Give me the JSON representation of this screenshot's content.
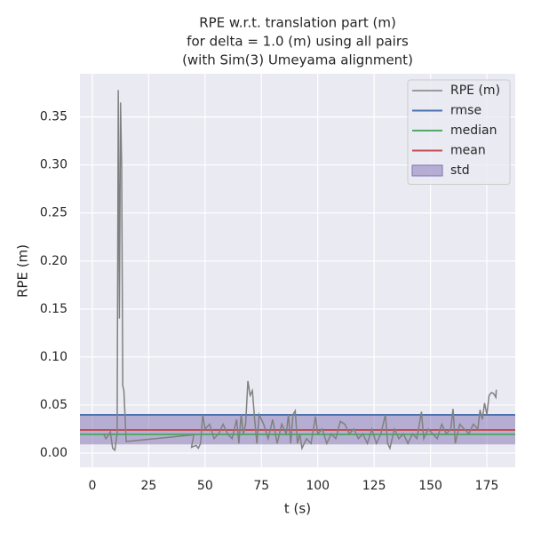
{
  "chart_data": {
    "type": "line",
    "title": [
      "RPE w.r.t. translation part (m)",
      "for delta = 1.0 (m) using all pairs",
      "(with Sim(3) Umeyama alignment)"
    ],
    "xlabel": "t (s)",
    "ylabel": "RPE (m)",
    "x": [
      5,
      6,
      7,
      8,
      9,
      10,
      10.5,
      11,
      11.5,
      12,
      12.5,
      13,
      13.5,
      14,
      15,
      45,
      44,
      46,
      47,
      48,
      49,
      50,
      52,
      54,
      56,
      58,
      60,
      62,
      64,
      65,
      66,
      67,
      68,
      69,
      70,
      71,
      72,
      73,
      74,
      76,
      78,
      80,
      82,
      84,
      86,
      87,
      88,
      89,
      90,
      91,
      92,
      93,
      95,
      97,
      99,
      100,
      102,
      104,
      106,
      108,
      110,
      112,
      114,
      116,
      118,
      120,
      122,
      124,
      126,
      128,
      130,
      131,
      132,
      134,
      136,
      138,
      140,
      142,
      144,
      146,
      147,
      149,
      151,
      153,
      155,
      157,
      159,
      160,
      161,
      163,
      165,
      167,
      169,
      171,
      172,
      173,
      174,
      175,
      176,
      177,
      178,
      179,
      179.2
    ],
    "series": [
      {
        "name": "RPE (m)",
        "color": "#808080",
        "values": [
          0.02,
          0.015,
          0.018,
          0.022,
          0.005,
          0.003,
          0.012,
          0.02,
          0.378,
          0.14,
          0.365,
          0.3,
          0.07,
          0.065,
          0.012,
          0.019,
          0.006,
          0.008,
          0.005,
          0.01,
          0.04,
          0.025,
          0.03,
          0.015,
          0.02,
          0.03,
          0.02,
          0.015,
          0.035,
          0.01,
          0.04,
          0.02,
          0.03,
          0.075,
          0.06,
          0.065,
          0.035,
          0.01,
          0.04,
          0.03,
          0.015,
          0.035,
          0.01,
          0.03,
          0.02,
          0.04,
          0.01,
          0.04,
          0.044,
          0.01,
          0.02,
          0.005,
          0.015,
          0.01,
          0.038,
          0.02,
          0.025,
          0.01,
          0.02,
          0.015,
          0.033,
          0.03,
          0.02,
          0.025,
          0.015,
          0.02,
          0.01,
          0.025,
          0.01,
          0.02,
          0.04,
          0.01,
          0.005,
          0.025,
          0.015,
          0.02,
          0.01,
          0.02,
          0.015,
          0.043,
          0.015,
          0.025,
          0.02,
          0.015,
          0.03,
          0.02,
          0.025,
          0.046,
          0.01,
          0.03,
          0.025,
          0.02,
          0.03,
          0.025,
          0.045,
          0.035,
          0.052,
          0.04,
          0.06,
          0.063,
          0.062,
          0.058,
          0.066
        ]
      }
    ],
    "lines": [
      {
        "name": "rmse",
        "color": "#4c72b0",
        "value": 0.0398
      },
      {
        "name": "median",
        "color": "#55a868",
        "value": 0.0194
      },
      {
        "name": "mean",
        "color": "#c44e52",
        "value": 0.024
      }
    ],
    "band": {
      "name": "std",
      "color": "#8172b2",
      "value": 0.015
    },
    "xlim": [
      -5.5,
      187.6
    ],
    "ylim": [
      -0.0148,
      0.395
    ],
    "xticks": [
      0,
      25,
      50,
      75,
      100,
      125,
      150,
      175
    ],
    "yticks": [
      {
        "value": 0,
        "label": "0.00"
      },
      {
        "value": 0.05,
        "label": "0.05"
      },
      {
        "value": 0.1,
        "label": "0.10"
      },
      {
        "value": 0.15,
        "label": "0.15"
      },
      {
        "value": 0.2,
        "label": "0.20"
      },
      {
        "value": 0.25,
        "label": "0.25"
      },
      {
        "value": 0.3,
        "label": "0.30"
      },
      {
        "value": 0.35,
        "label": "0.35"
      }
    ],
    "grid": true,
    "legend": "upper right"
  }
}
